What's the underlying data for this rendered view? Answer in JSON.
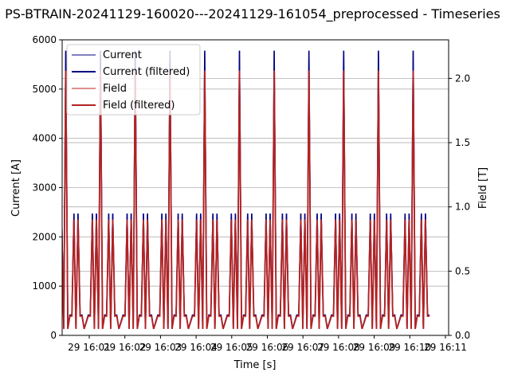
{
  "chart_data": {
    "type": "line",
    "title": "PS-BTRAIN-20241129-160020---20241129-161054_preprocessed - Timeseries",
    "xlabel": "Time [s]",
    "ylabel_left": "Current [A]",
    "ylabel_right": "Field [T]",
    "ylim_left": [
      0,
      6000
    ],
    "ylim_right": [
      0.0,
      2.3
    ],
    "yticks_left": [
      "0",
      "1000",
      "2000",
      "3000",
      "4000",
      "5000",
      "6000"
    ],
    "yticks_right": [
      "0.0",
      "0.5",
      "1.0",
      "1.5",
      "2.0"
    ],
    "xticks": [
      "29 16:01",
      "29 16:02",
      "29 16:03",
      "29 16:04",
      "29 16:05",
      "29 16:06",
      "29 16:07",
      "29 16:08",
      "29 16:09",
      "29 16:10",
      "29 16:11"
    ],
    "grid": "horizontal",
    "legend_position": "top-left",
    "colors": {
      "current": "#8080c0",
      "current_filtered": "#000080",
      "field": "#e09090",
      "field_filtered": "#b22222"
    },
    "series": [
      {
        "name": "Current",
        "axis": "left",
        "peak_current": 5780
      },
      {
        "name": "Current (filtered)",
        "axis": "left",
        "peak_current": 5780
      },
      {
        "name": "Field",
        "axis": "right",
        "peak_field": 2.06
      },
      {
        "name": "Field (filtered)",
        "axis": "right",
        "peak_field": 2.06
      }
    ],
    "cycle_profile_field_T": [
      0.05,
      0.1,
      0.15,
      0.15,
      0.9,
      0.05,
      0.9,
      0.05,
      2.06,
      0.05,
      0.15,
      0.15,
      0.9,
      0.05,
      0.9,
      0.15,
      0.15
    ]
  }
}
